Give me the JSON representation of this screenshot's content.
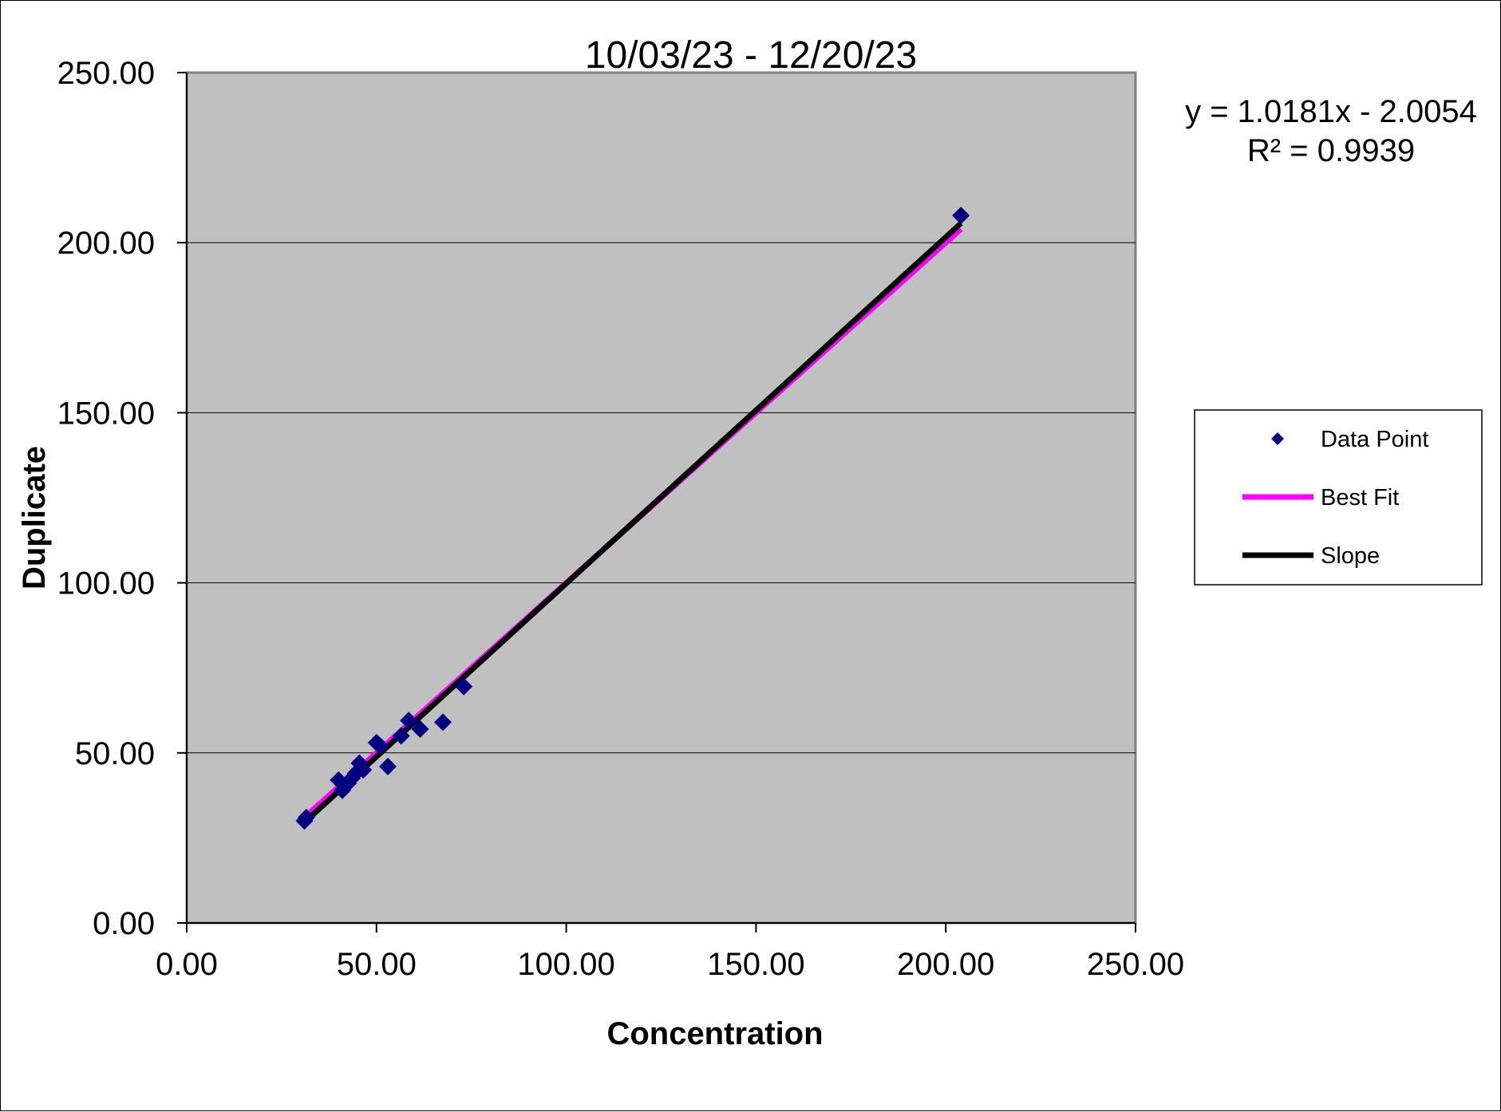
{
  "chart_data": {
    "type": "scatter",
    "title": "10/03/23 - 12/20/23",
    "xlabel": "Concentration",
    "ylabel": "Duplicate",
    "xlim": [
      0,
      250
    ],
    "ylim": [
      0,
      250
    ],
    "x_ticks": [
      "0.00",
      "50.00",
      "100.00",
      "150.00",
      "200.00",
      "250.00"
    ],
    "y_ticks": [
      "0.00",
      "50.00",
      "100.00",
      "150.00",
      "200.00",
      "250.00"
    ],
    "grid": "horizontal",
    "plot_background": "#c0c0c0",
    "legend_position": "right",
    "trendline_equation": "y = 1.0181x - 2.0054",
    "r_squared": "R² = 0.9939",
    "series": [
      {
        "name": "Data Point",
        "kind": "scatter",
        "marker": "diamond",
        "color": "#000080",
        "x": [
          31.0,
          31.5,
          40.0,
          41.0,
          42.5,
          43.5,
          44.5,
          45.5,
          46.5,
          50.0,
          51.0,
          53.0,
          56.5,
          58.5,
          61.5,
          67.5,
          73.0,
          204.0
        ],
        "y": [
          30.0,
          31.0,
          42.0,
          39.0,
          41.0,
          42.5,
          44.0,
          47.0,
          45.0,
          53.0,
          52.0,
          46.0,
          55.0,
          59.5,
          57.0,
          59.0,
          69.5,
          208.0
        ]
      },
      {
        "name": "Best Fit",
        "kind": "line",
        "color": "#ff00ff",
        "x": [
          31.0,
          204.0
        ],
        "y": [
          31.0,
          204.0
        ]
      },
      {
        "name": "Slope",
        "kind": "line",
        "color": "#000000",
        "x": [
          31.0,
          204.0
        ],
        "y": [
          29.55,
          205.69
        ]
      }
    ]
  }
}
